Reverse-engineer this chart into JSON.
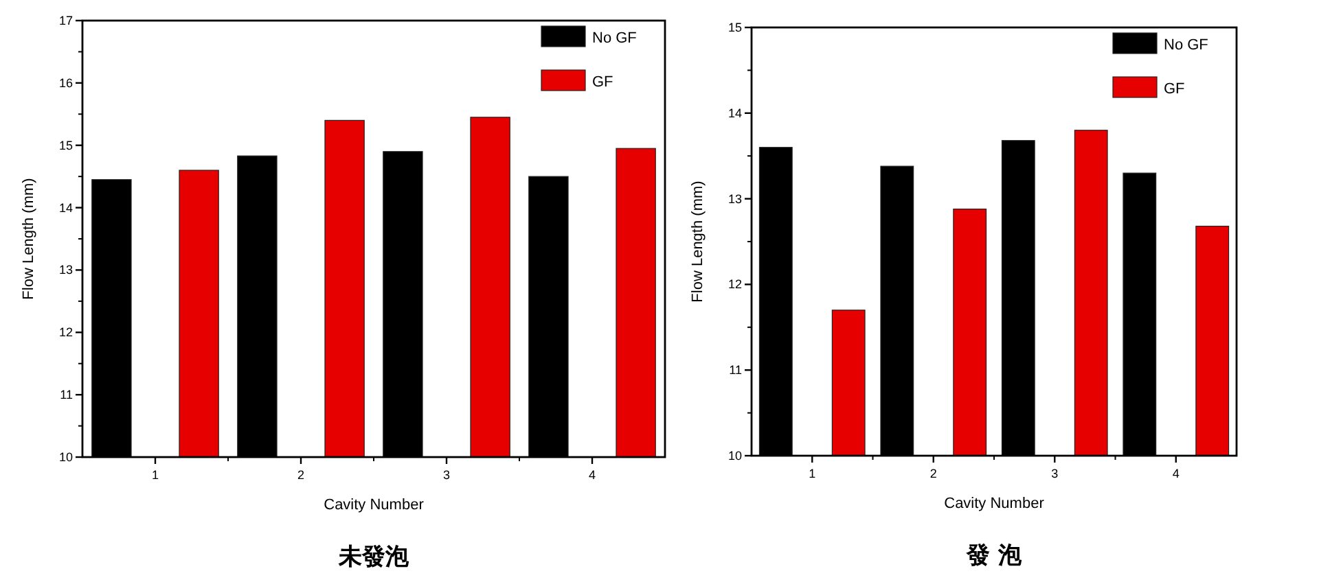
{
  "chart_data": [
    {
      "type": "bar",
      "title": "未發泡",
      "xlabel": "Cavity Number",
      "ylabel": "Flow Length (mm)",
      "categories": [
        "1",
        "2",
        "3",
        "4"
      ],
      "series": [
        {
          "name": "No GF",
          "color": "#000000",
          "values": [
            14.45,
            14.83,
            14.9,
            14.5
          ]
        },
        {
          "name": "GF",
          "color": "#e60000",
          "values": [
            14.6,
            15.4,
            15.45,
            14.95
          ]
        }
      ],
      "ylim": [
        10,
        17
      ],
      "yticks": [
        10,
        11,
        12,
        13,
        14,
        15,
        16,
        17
      ],
      "legend": "top right"
    },
    {
      "type": "bar",
      "title": "發 泡",
      "xlabel": "Cavity Number",
      "ylabel": "Flow Length (mm)",
      "categories": [
        "1",
        "2",
        "3",
        "4"
      ],
      "series": [
        {
          "name": "No GF",
          "color": "#000000",
          "values": [
            13.6,
            13.38,
            13.68,
            13.3
          ]
        },
        {
          "name": "GF",
          "color": "#e60000",
          "values": [
            11.7,
            12.88,
            13.8,
            12.68
          ]
        }
      ],
      "ylim": [
        10,
        15
      ],
      "yticks": [
        10,
        11,
        12,
        13,
        14,
        15
      ],
      "legend": "top right"
    }
  ]
}
